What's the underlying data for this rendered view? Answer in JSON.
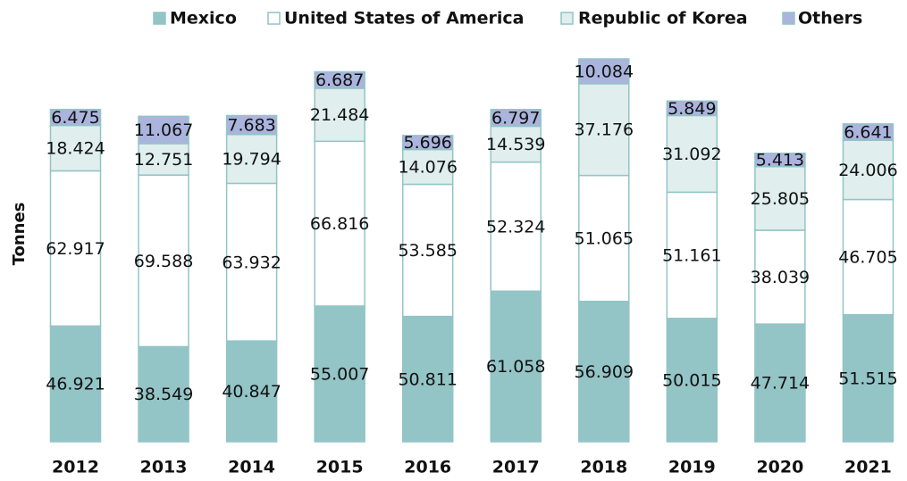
{
  "chart_data": {
    "type": "stacked_bar",
    "y_label": "Tonnes",
    "categories": [
      "2012",
      "2013",
      "2014",
      "2015",
      "2016",
      "2017",
      "2018",
      "2019",
      "2020",
      "2021"
    ],
    "series": [
      {
        "name": "Mexico",
        "color": "#93c4c6",
        "values": [
          46.921,
          38.549,
          40.847,
          55.007,
          50.811,
          61.058,
          56.909,
          50.015,
          47.714,
          51.515
        ]
      },
      {
        "name": "United States of America",
        "color": "#ffffff",
        "values": [
          62.917,
          69.588,
          63.932,
          66.816,
          53.585,
          52.324,
          51.065,
          51.161,
          38.039,
          46.705
        ]
      },
      {
        "name": "Republic of Korea",
        "color": "#e0eeee",
        "values": [
          18.424,
          12.751,
          19.794,
          21.484,
          14.076,
          14.539,
          37.176,
          31.092,
          25.805,
          24.006
        ]
      },
      {
        "name": "Others",
        "color": "#aab4dd",
        "values": [
          6.475,
          11.067,
          7.683,
          6.687,
          5.696,
          6.797,
          10.084,
          5.849,
          5.413,
          6.641
        ]
      }
    ],
    "legend": "top"
  }
}
